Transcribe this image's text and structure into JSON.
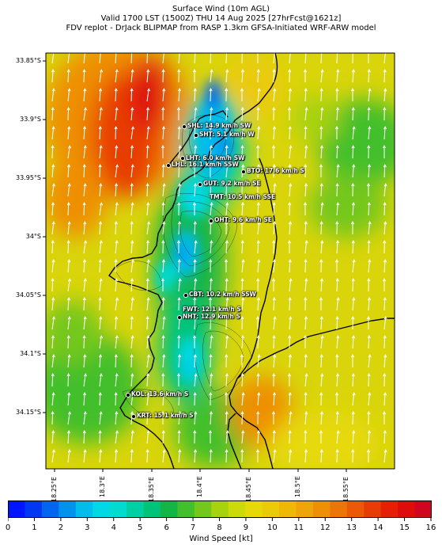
{
  "title": {
    "line1": "Surface Wind (10m AGL)",
    "line2": "Valid 1700 LST (1500Z) THU 14 Aug 2025 [27hrFcst@1621z]",
    "line3": "FDV replot - DrJack BLIPMAP from RASP 1.3km GFSA-Initiated WRF-ARW model"
  },
  "axes": {
    "lat_labels": [
      "33.85°S",
      "33.9°S",
      "33.95°S",
      "34°S",
      "34.05°S",
      "34.1°S",
      "34.15°S"
    ],
    "lon_labels": [
      "18.25°E",
      "18.3°E",
      "18.35°E",
      "18.4°E",
      "18.45°E",
      "18.5°E",
      "18.55°E"
    ]
  },
  "stations": [
    {
      "label": "SHL: 14.9 km/h SW"
    },
    {
      "label": "SHT: 5.1 km/h W"
    },
    {
      "label": "LHT: 6.0 km/h SW"
    },
    {
      "label": "LHL: 16.1 km/h SSW"
    },
    {
      "label": "BTO: 17.6 km/h S"
    },
    {
      "label": "GUT: 9.2 km/h SE"
    },
    {
      "label": "TMT: 10.5 km/h SSE"
    },
    {
      "label": "OHT: 9.6 km/h SE"
    },
    {
      "label": "CBT: 10.2 km/h SSW"
    },
    {
      "label": "FWT: 12.1 km/h S"
    },
    {
      "label": "NHT: 12.9 km/h S"
    },
    {
      "label": "KOL: 13.6 km/h S"
    },
    {
      "label": "KRT: 15.1 km/h S"
    }
  ],
  "colorbar": {
    "ticks": [
      "0",
      "1",
      "2",
      "3",
      "4",
      "5",
      "6",
      "7",
      "8",
      "9",
      "10",
      "11",
      "12",
      "13",
      "14",
      "15",
      "16"
    ],
    "label": "Wind Speed [kt]",
    "colors": [
      "#0015ff",
      "#0037f2",
      "#0066f0",
      "#0092ec",
      "#00bdeb",
      "#00d9e4",
      "#00dbd0",
      "#00cfa4",
      "#00c37a",
      "#13b547",
      "#43bf2c",
      "#74c71b",
      "#a6d20e",
      "#cdda09",
      "#e6d908",
      "#ebca08",
      "#efb807",
      "#eea507",
      "#ee8f06",
      "#ec7506",
      "#eb5905",
      "#e83c05",
      "#e41f06",
      "#df0c0c",
      "#d00621"
    ]
  }
}
